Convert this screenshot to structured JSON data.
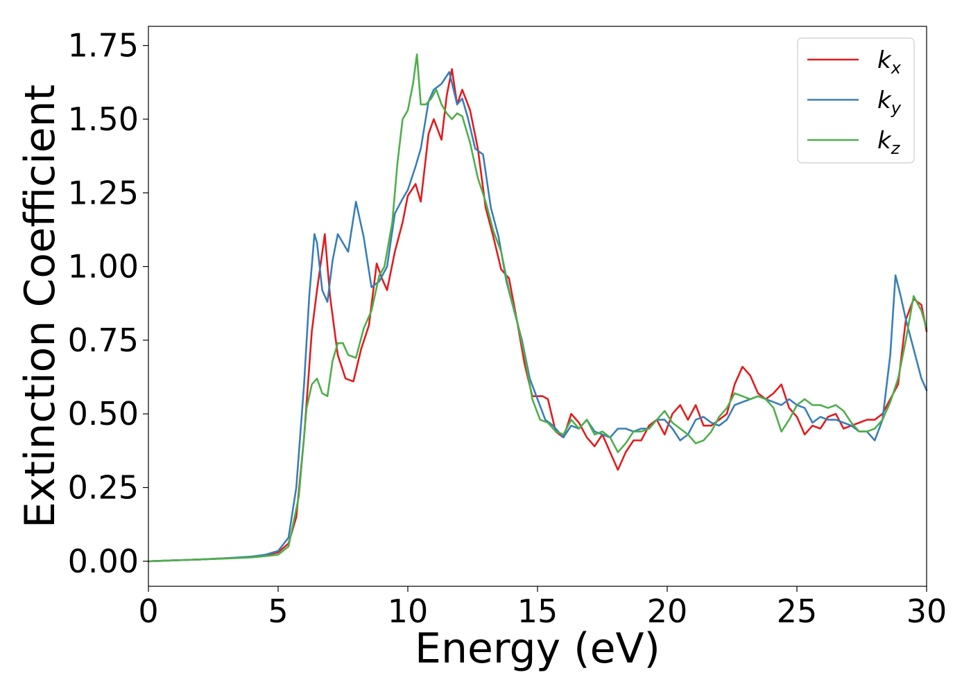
{
  "chart_data": {
    "type": "line",
    "xlabel": "Energy (eV)",
    "ylabel": "Extinction Coefficient",
    "xlim": [
      0,
      30
    ],
    "ylim": [
      -0.085,
      1.815
    ],
    "xticks": [
      0,
      5,
      10,
      15,
      20,
      25,
      30
    ],
    "xtick_labels": [
      "0",
      "5",
      "10",
      "15",
      "20",
      "25",
      "30"
    ],
    "yticks": [
      0.0,
      0.25,
      0.5,
      0.75,
      1.0,
      1.25,
      1.5,
      1.75
    ],
    "ytick_labels": [
      "0.00",
      "0.25",
      "0.50",
      "0.75",
      "1.00",
      "1.25",
      "1.50",
      "1.75"
    ],
    "grid": false,
    "legend_position": "top-right",
    "series": [
      {
        "name": "k",
        "subscript": "x",
        "color": "#e41a1c",
        "x": [
          0,
          1,
          2,
          3,
          4,
          4.5,
          5,
          5.4,
          5.7,
          6.0,
          6.3,
          6.5,
          6.8,
          7.0,
          7.3,
          7.6,
          7.9,
          8.2,
          8.5,
          8.8,
          9.0,
          9.2,
          9.5,
          9.8,
          10.0,
          10.3,
          10.5,
          10.8,
          11.0,
          11.3,
          11.5,
          11.7,
          11.9,
          12.1,
          12.4,
          12.7,
          13.0,
          13.3,
          13.6,
          13.9,
          14.2,
          14.5,
          14.8,
          15.0,
          15.2,
          15.4,
          15.7,
          16.0,
          16.3,
          16.6,
          16.9,
          17.2,
          17.5,
          17.8,
          18.1,
          18.4,
          18.7,
          19.0,
          19.3,
          19.6,
          19.9,
          20.2,
          20.5,
          20.8,
          21.1,
          21.4,
          21.7,
          22.0,
          22.3,
          22.6,
          22.9,
          23.2,
          23.5,
          23.8,
          24.1,
          24.4,
          24.7,
          25.0,
          25.3,
          25.6,
          25.9,
          26.2,
          26.5,
          26.8,
          27.1,
          27.4,
          27.7,
          28.0,
          28.3,
          28.6,
          28.9,
          29.2,
          29.5,
          29.8,
          30.0
        ],
        "y": [
          0,
          0.003,
          0.006,
          0.01,
          0.015,
          0.02,
          0.03,
          0.06,
          0.15,
          0.42,
          0.78,
          0.92,
          1.11,
          0.9,
          0.7,
          0.62,
          0.61,
          0.72,
          0.8,
          1.01,
          0.96,
          0.92,
          1.05,
          1.15,
          1.24,
          1.28,
          1.22,
          1.45,
          1.5,
          1.43,
          1.58,
          1.67,
          1.55,
          1.6,
          1.53,
          1.4,
          1.2,
          1.1,
          0.99,
          0.96,
          0.82,
          0.67,
          0.56,
          0.56,
          0.56,
          0.55,
          0.44,
          0.42,
          0.5,
          0.47,
          0.42,
          0.39,
          0.43,
          0.37,
          0.31,
          0.37,
          0.41,
          0.41,
          0.46,
          0.48,
          0.43,
          0.5,
          0.53,
          0.48,
          0.53,
          0.46,
          0.46,
          0.48,
          0.5,
          0.6,
          0.66,
          0.63,
          0.57,
          0.55,
          0.57,
          0.6,
          0.52,
          0.49,
          0.43,
          0.46,
          0.45,
          0.49,
          0.5,
          0.45,
          0.46,
          0.47,
          0.48,
          0.48,
          0.5,
          0.55,
          0.6,
          0.82,
          0.89,
          0.87,
          0.78
        ]
      },
      {
        "name": "k",
        "subscript": "y",
        "color": "#377eb8",
        "x": [
          0,
          1,
          2,
          3,
          4,
          4.5,
          5,
          5.4,
          5.7,
          6.0,
          6.2,
          6.4,
          6.5,
          6.7,
          6.9,
          7.1,
          7.3,
          7.5,
          7.7,
          8.0,
          8.3,
          8.6,
          8.9,
          9.2,
          9.5,
          9.8,
          10.0,
          10.3,
          10.5,
          10.8,
          11.0,
          11.3,
          11.6,
          11.9,
          12.1,
          12.3,
          12.6,
          12.9,
          13.2,
          13.5,
          13.8,
          14.1,
          14.4,
          14.7,
          15.0,
          15.3,
          15.6,
          16.0,
          16.3,
          16.6,
          16.9,
          17.2,
          17.5,
          17.8,
          18.1,
          18.4,
          18.7,
          19.0,
          19.3,
          19.6,
          19.9,
          20.2,
          20.5,
          20.8,
          21.1,
          21.4,
          21.7,
          22.0,
          22.3,
          22.6,
          22.9,
          23.2,
          23.5,
          23.8,
          24.1,
          24.4,
          24.7,
          25.0,
          25.3,
          25.6,
          25.9,
          26.2,
          26.5,
          26.8,
          27.1,
          27.4,
          27.7,
          28.0,
          28.3,
          28.6,
          28.8,
          29.0,
          29.2,
          29.5,
          29.8,
          30.0
        ],
        "y": [
          0,
          0.003,
          0.006,
          0.01,
          0.016,
          0.022,
          0.035,
          0.08,
          0.25,
          0.6,
          0.9,
          1.11,
          1.08,
          0.92,
          0.88,
          1.02,
          1.11,
          1.08,
          1.05,
          1.22,
          1.1,
          0.93,
          0.95,
          1.0,
          1.18,
          1.23,
          1.26,
          1.34,
          1.4,
          1.56,
          1.6,
          1.62,
          1.66,
          1.55,
          1.57,
          1.51,
          1.4,
          1.38,
          1.2,
          1.1,
          0.95,
          0.85,
          0.75,
          0.62,
          0.55,
          0.48,
          0.46,
          0.42,
          0.46,
          0.45,
          0.48,
          0.44,
          0.43,
          0.42,
          0.45,
          0.45,
          0.44,
          0.45,
          0.45,
          0.48,
          0.48,
          0.45,
          0.41,
          0.43,
          0.48,
          0.49,
          0.47,
          0.46,
          0.48,
          0.53,
          0.54,
          0.55,
          0.56,
          0.55,
          0.54,
          0.53,
          0.55,
          0.53,
          0.52,
          0.47,
          0.49,
          0.48,
          0.48,
          0.47,
          0.46,
          0.44,
          0.44,
          0.41,
          0.48,
          0.7,
          0.97,
          0.9,
          0.82,
          0.72,
          0.62,
          0.58
        ]
      },
      {
        "name": "k",
        "subscript": "z",
        "color": "#4daf4a",
        "x": [
          0,
          1,
          2,
          3,
          4,
          4.5,
          5,
          5.4,
          5.8,
          6.1,
          6.3,
          6.5,
          6.7,
          6.9,
          7.1,
          7.3,
          7.5,
          7.7,
          8.0,
          8.3,
          8.6,
          8.9,
          9.1,
          9.4,
          9.6,
          9.8,
          10.0,
          10.2,
          10.35,
          10.5,
          10.7,
          10.9,
          11.1,
          11.3,
          11.5,
          11.7,
          11.9,
          12.1,
          12.4,
          12.7,
          13.0,
          13.3,
          13.6,
          13.9,
          14.2,
          14.5,
          14.8,
          15.1,
          15.4,
          15.7,
          16.0,
          16.3,
          16.6,
          16.9,
          17.2,
          17.5,
          17.8,
          18.1,
          18.4,
          18.7,
          19.0,
          19.3,
          19.6,
          19.9,
          20.2,
          20.5,
          20.8,
          21.1,
          21.4,
          21.7,
          22.0,
          22.3,
          22.6,
          22.9,
          23.2,
          23.5,
          23.8,
          24.1,
          24.4,
          24.7,
          25.0,
          25.3,
          25.6,
          25.9,
          26.2,
          26.5,
          26.8,
          27.1,
          27.4,
          27.7,
          28.0,
          28.3,
          28.6,
          28.9,
          29.2,
          29.5,
          29.8,
          30.0
        ],
        "y": [
          0,
          0.003,
          0.006,
          0.009,
          0.013,
          0.017,
          0.022,
          0.05,
          0.22,
          0.52,
          0.6,
          0.62,
          0.57,
          0.56,
          0.68,
          0.74,
          0.74,
          0.7,
          0.69,
          0.79,
          0.85,
          0.97,
          1.0,
          1.15,
          1.35,
          1.5,
          1.53,
          1.62,
          1.72,
          1.55,
          1.55,
          1.57,
          1.6,
          1.55,
          1.52,
          1.5,
          1.52,
          1.51,
          1.42,
          1.3,
          1.22,
          1.12,
          1.05,
          0.92,
          0.82,
          0.7,
          0.55,
          0.48,
          0.47,
          0.44,
          0.43,
          0.48,
          0.45,
          0.48,
          0.43,
          0.44,
          0.42,
          0.37,
          0.4,
          0.44,
          0.44,
          0.45,
          0.48,
          0.51,
          0.47,
          0.45,
          0.43,
          0.4,
          0.41,
          0.44,
          0.49,
          0.52,
          0.57,
          0.56,
          0.55,
          0.56,
          0.55,
          0.52,
          0.44,
          0.48,
          0.53,
          0.55,
          0.53,
          0.53,
          0.52,
          0.53,
          0.51,
          0.47,
          0.44,
          0.44,
          0.45,
          0.48,
          0.54,
          0.62,
          0.75,
          0.9,
          0.85,
          0.79
        ]
      }
    ]
  }
}
